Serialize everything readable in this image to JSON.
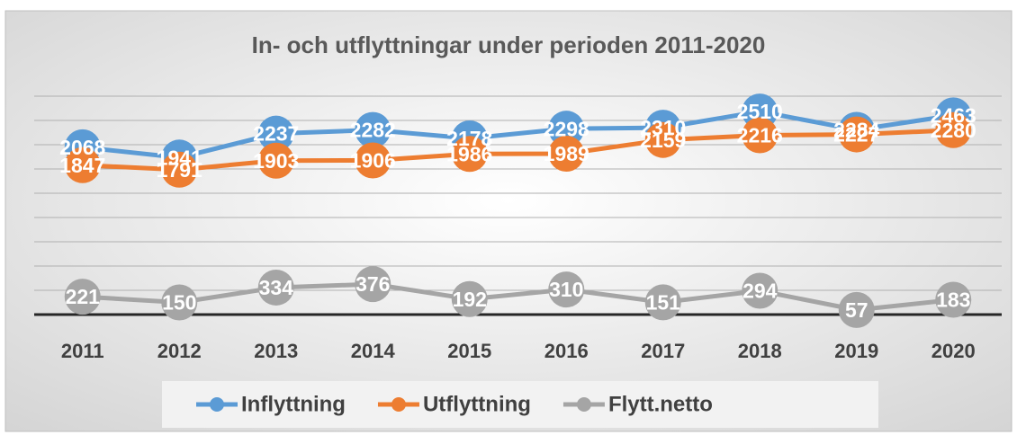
{
  "chart_data": {
    "type": "line",
    "title": "In- och utflyttningar under perioden 2011-2020",
    "categories": [
      "2011",
      "2012",
      "2013",
      "2014",
      "2015",
      "2016",
      "2017",
      "2018",
      "2019",
      "2020"
    ],
    "series": [
      {
        "name": "Inflyttning",
        "color": "#5b9bd5",
        "values": [
          2068,
          1941,
          2237,
          2282,
          2178,
          2298,
          2310,
          2510,
          2284,
          2463
        ]
      },
      {
        "name": "Utflyttning",
        "color": "#ed7d31",
        "values": [
          1847,
          1791,
          1903,
          1906,
          1986,
          1989,
          2159,
          2216,
          2227,
          2280
        ]
      },
      {
        "name": "Flytt.netto",
        "color": "#a5a5a5",
        "values": [
          221,
          150,
          334,
          376,
          192,
          310,
          151,
          294,
          57,
          183
        ]
      }
    ],
    "ylim": [
      0,
      2700
    ],
    "yticks": [
      0,
      300,
      600,
      900,
      1200,
      1500,
      1800,
      2100,
      2400,
      2700
    ],
    "grid": true,
    "legend": "bottom"
  }
}
